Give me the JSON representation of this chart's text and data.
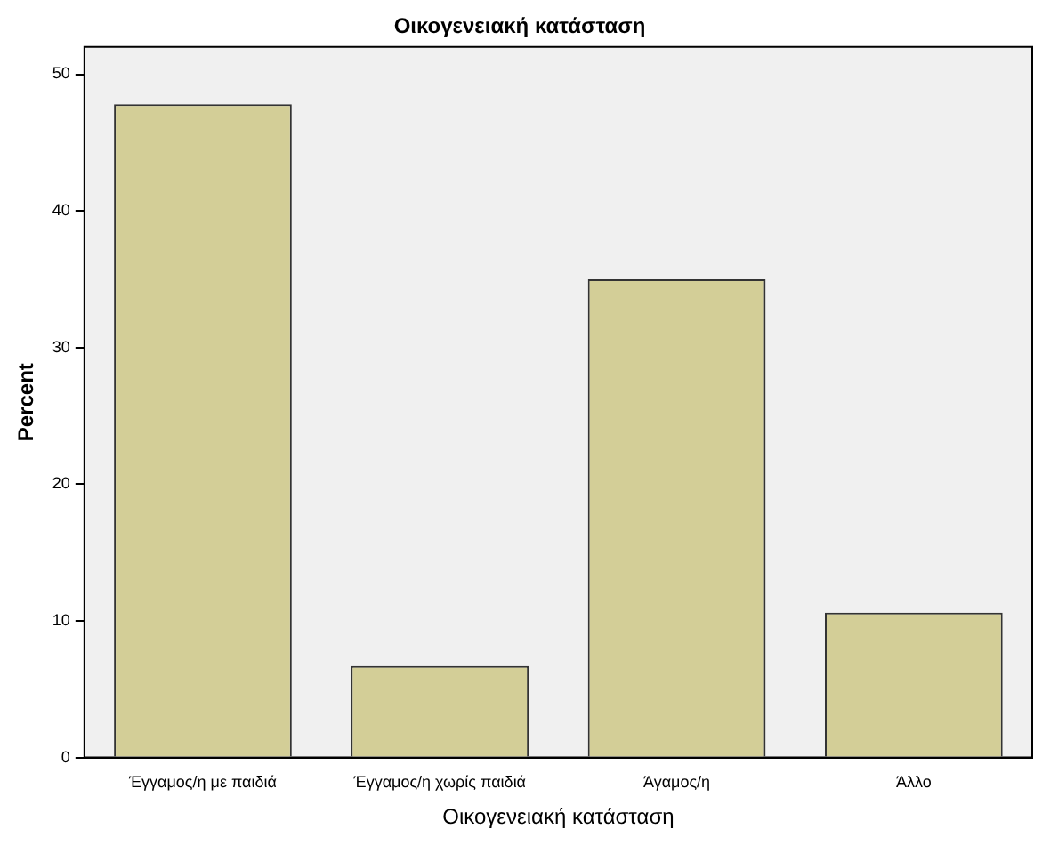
{
  "chart_data": {
    "type": "bar",
    "title": "Οικογενειακή κατάσταση",
    "xlabel": "Οικογενειακή κατάσταση",
    "ylabel": "Percent",
    "categories": [
      "Έγγαμος/η με παιδιά",
      "Έγγαμος/η χωρίς παιδιά",
      "Άγαμος/η",
      "Άλλο"
    ],
    "values": [
      47.8,
      6.7,
      35.0,
      10.6
    ],
    "color": "#d3ce97",
    "ylim": [
      0,
      52
    ],
    "yticks": [
      0,
      10,
      20,
      30,
      40,
      50
    ],
    "grid": false,
    "legend": false
  }
}
